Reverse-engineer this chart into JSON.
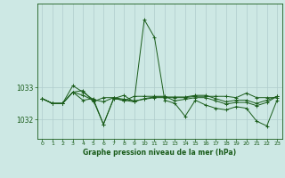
{
  "xlabel": "Graphe pression niveau de la mer (hPa)",
  "x_ticks": [
    0,
    1,
    2,
    3,
    4,
    5,
    6,
    7,
    8,
    9,
    10,
    11,
    12,
    13,
    14,
    15,
    16,
    17,
    18,
    19,
    20,
    21,
    22,
    23
  ],
  "ylim": [
    1031.4,
    1035.6
  ],
  "yticks": [
    1032,
    1033
  ],
  "background_color": "#cde8e4",
  "grid_color": "#b0cccc",
  "line_color": "#1a5c1a",
  "series": [
    [
      1032.65,
      1032.5,
      1032.5,
      1032.85,
      1032.75,
      1032.6,
      1031.85,
      1032.65,
      1032.6,
      1032.55,
      1035.1,
      1034.55,
      1032.6,
      1032.5,
      1032.1,
      1032.6,
      1032.45,
      1032.35,
      1032.3,
      1032.4,
      1032.35,
      1031.95,
      1031.8,
      1032.6
    ],
    [
      1032.65,
      1032.5,
      1032.5,
      1033.05,
      1032.85,
      1032.62,
      1032.55,
      1032.68,
      1032.63,
      1032.58,
      1032.63,
      1032.68,
      1032.68,
      1032.68,
      1032.68,
      1032.72,
      1032.72,
      1032.72,
      1032.72,
      1032.68,
      1032.82,
      1032.68,
      1032.68,
      1032.68
    ],
    [
      1032.65,
      1032.5,
      1032.5,
      1032.85,
      1032.6,
      1032.65,
      1031.85,
      1032.65,
      1032.75,
      1032.55,
      1032.65,
      1032.7,
      1032.7,
      1032.7,
      1032.7,
      1032.75,
      1032.75,
      1032.65,
      1032.55,
      1032.6,
      1032.6,
      1032.5,
      1032.6,
      1032.72
    ],
    [
      1032.65,
      1032.5,
      1032.5,
      1032.85,
      1032.9,
      1032.55,
      1032.68,
      1032.68,
      1032.58,
      1032.72,
      1032.72,
      1032.72,
      1032.72,
      1032.58,
      1032.63,
      1032.68,
      1032.68,
      1032.58,
      1032.48,
      1032.53,
      1032.53,
      1032.43,
      1032.53,
      1032.72
    ]
  ]
}
